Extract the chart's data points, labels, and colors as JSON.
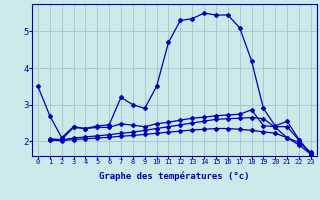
{
  "xlabel": "Graphe des températures (°c)",
  "background_color": "#cce8e8",
  "grid_color": "#9ecece",
  "line_color": "#0000bb",
  "xlim": [
    -0.5,
    23.5
  ],
  "ylim": [
    1.6,
    5.75
  ],
  "yticks": [
    2,
    3,
    4,
    5
  ],
  "xticks": [
    0,
    1,
    2,
    3,
    4,
    5,
    6,
    7,
    8,
    9,
    10,
    11,
    12,
    13,
    14,
    15,
    16,
    17,
    18,
    19,
    20,
    21,
    22,
    23
  ],
  "series1_x": [
    0,
    1,
    2,
    3,
    4,
    5,
    6,
    7,
    8,
    9,
    10,
    11,
    12,
    13,
    14,
    15,
    16,
    17,
    18,
    19,
    20,
    21,
    22,
    23
  ],
  "series1_y": [
    3.5,
    2.7,
    2.1,
    2.4,
    2.35,
    2.42,
    2.45,
    3.2,
    3.0,
    2.9,
    3.5,
    4.7,
    5.3,
    5.35,
    5.5,
    5.45,
    5.45,
    5.1,
    4.2,
    2.9,
    2.42,
    2.55,
    2.05,
    1.65
  ],
  "series2_x": [
    1,
    2,
    3,
    4,
    5,
    6,
    7,
    8,
    9,
    10,
    11,
    12,
    13,
    14,
    15,
    16,
    17,
    18,
    19,
    20,
    21,
    22,
    23
  ],
  "series2_y": [
    2.05,
    2.05,
    2.38,
    2.35,
    2.38,
    2.38,
    2.48,
    2.44,
    2.4,
    2.48,
    2.52,
    2.58,
    2.63,
    2.66,
    2.7,
    2.72,
    2.74,
    2.86,
    2.43,
    2.4,
    2.4,
    2.03,
    1.63
  ],
  "series3_x": [
    1,
    2,
    3,
    4,
    5,
    6,
    7,
    8,
    9,
    10,
    11,
    12,
    13,
    14,
    15,
    16,
    17,
    18,
    19,
    20,
    21,
    22,
    23
  ],
  "series3_y": [
    2.07,
    2.04,
    2.09,
    2.12,
    2.15,
    2.18,
    2.22,
    2.25,
    2.3,
    2.35,
    2.4,
    2.45,
    2.5,
    2.55,
    2.6,
    2.62,
    2.63,
    2.65,
    2.62,
    2.38,
    2.1,
    1.97,
    1.7
  ],
  "series4_x": [
    1,
    2,
    3,
    4,
    5,
    6,
    7,
    8,
    9,
    10,
    11,
    12,
    13,
    14,
    15,
    16,
    17,
    18,
    19,
    20,
    21,
    22,
    23
  ],
  "series4_y": [
    2.03,
    2.02,
    2.05,
    2.07,
    2.09,
    2.11,
    2.14,
    2.16,
    2.19,
    2.22,
    2.25,
    2.28,
    2.31,
    2.33,
    2.35,
    2.35,
    2.33,
    2.3,
    2.26,
    2.22,
    2.1,
    1.9,
    1.65
  ]
}
